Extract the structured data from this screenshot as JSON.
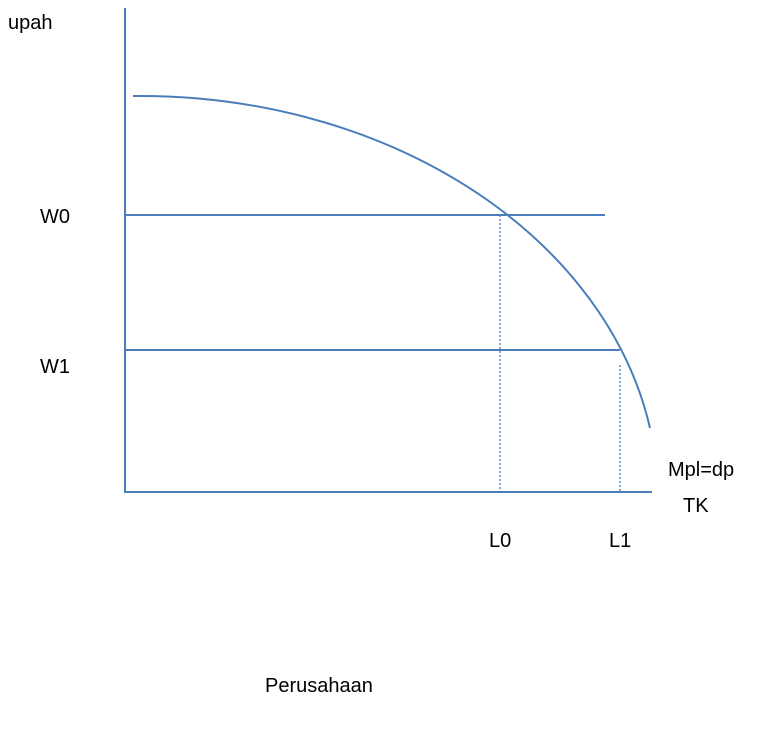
{
  "y_axis_label": "upah",
  "x_axis_label": "TK",
  "levels": [
    "W0",
    "W1"
  ],
  "quantities": [
    "L0",
    "L1"
  ],
  "curve_label": "Mpl=dp",
  "caption": "Perusahaan"
}
